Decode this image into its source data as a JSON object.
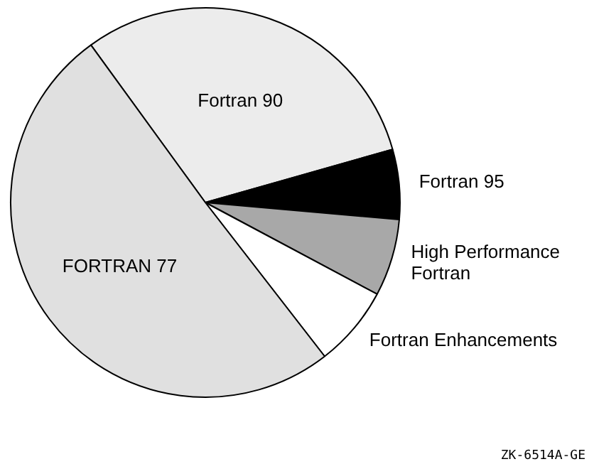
{
  "chart_data": {
    "type": "pie",
    "categories": [
      "Fortran 90",
      "Fortran 95",
      "High Performance Fortran",
      "Fortran Enhancements",
      "FORTRAN 77"
    ],
    "values": [
      30.6,
      5.8,
      6.4,
      6.7,
      50.5
    ],
    "colors": [
      "#ececec",
      "#000000",
      "#a8a8a8",
      "#ffffff",
      "#e0e0e0"
    ],
    "annotations": [
      "ZK-6514A-GE"
    ],
    "legend": false
  }
}
